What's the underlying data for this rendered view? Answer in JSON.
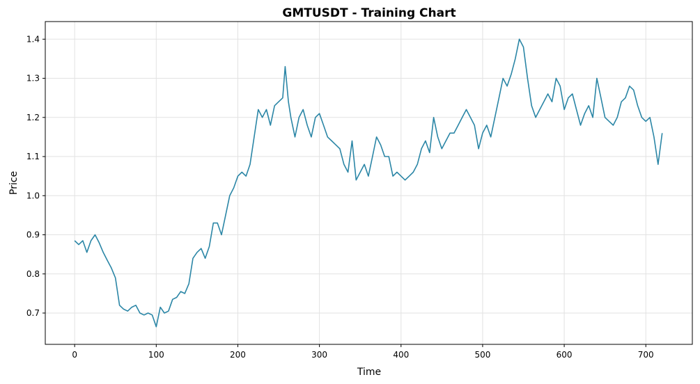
{
  "chart_data": {
    "type": "line",
    "title": "GMTUSDT - Training Chart",
    "xlabel": "Time",
    "ylabel": "Price",
    "xlim": [
      -36,
      757
    ],
    "ylim": [
      0.62,
      1.445
    ],
    "grid": true,
    "line_color": "#2b86a6",
    "x_ticks": [
      0,
      100,
      200,
      300,
      400,
      500,
      600,
      700
    ],
    "x_tick_labels": [
      "0",
      "100",
      "200",
      "300",
      "400",
      "500",
      "600",
      "700"
    ],
    "y_ticks": [
      0.7,
      0.8,
      0.9,
      1.0,
      1.1,
      1.2,
      1.3,
      1.4
    ],
    "y_tick_labels": [
      "0.7",
      "0.8",
      "0.9",
      "1.0",
      "1.1",
      "1.2",
      "1.3",
      "1.4"
    ],
    "series": [
      {
        "x": [
          0,
          5,
          10,
          15,
          20,
          25,
          30,
          35,
          40,
          45,
          50,
          55,
          60,
          65,
          70,
          75,
          80,
          85,
          90,
          95,
          100,
          105,
          110,
          115,
          120,
          125,
          130,
          135,
          140,
          145,
          150,
          155,
          160,
          165,
          170,
          175,
          180,
          185,
          190,
          195,
          200,
          205,
          210,
          215,
          220,
          225,
          230,
          235,
          240,
          245,
          250,
          255,
          258,
          262,
          265,
          270,
          275,
          280,
          285,
          290,
          295,
          300,
          305,
          310,
          315,
          320,
          325,
          330,
          335,
          340,
          345,
          350,
          355,
          360,
          365,
          370,
          375,
          380,
          385,
          390,
          395,
          400,
          405,
          410,
          415,
          420,
          425,
          430,
          435,
          440,
          445,
          450,
          455,
          460,
          465,
          470,
          475,
          480,
          485,
          490,
          495,
          500,
          505,
          510,
          515,
          520,
          525,
          530,
          535,
          540,
          545,
          550,
          555,
          560,
          565,
          570,
          575,
          580,
          585,
          590,
          595,
          600,
          605,
          610,
          615,
          620,
          625,
          630,
          635,
          640,
          645,
          650,
          655,
          660,
          665,
          670,
          675,
          680,
          685,
          690,
          695,
          700,
          705,
          710,
          715,
          720
        ],
        "values": [
          0.885,
          0.875,
          0.885,
          0.855,
          0.885,
          0.9,
          0.88,
          0.855,
          0.835,
          0.815,
          0.79,
          0.72,
          0.71,
          0.705,
          0.715,
          0.72,
          0.7,
          0.695,
          0.7,
          0.695,
          0.665,
          0.715,
          0.7,
          0.705,
          0.735,
          0.74,
          0.755,
          0.75,
          0.775,
          0.84,
          0.855,
          0.865,
          0.84,
          0.87,
          0.93,
          0.93,
          0.9,
          0.95,
          1.0,
          1.02,
          1.05,
          1.06,
          1.05,
          1.08,
          1.15,
          1.22,
          1.2,
          1.22,
          1.18,
          1.23,
          1.24,
          1.25,
          1.33,
          1.24,
          1.2,
          1.15,
          1.2,
          1.22,
          1.18,
          1.15,
          1.2,
          1.21,
          1.18,
          1.15,
          1.14,
          1.13,
          1.12,
          1.08,
          1.06,
          1.14,
          1.04,
          1.06,
          1.08,
          1.05,
          1.1,
          1.15,
          1.13,
          1.1,
          1.1,
          1.05,
          1.06,
          1.05,
          1.04,
          1.05,
          1.06,
          1.08,
          1.12,
          1.14,
          1.11,
          1.2,
          1.15,
          1.12,
          1.14,
          1.16,
          1.16,
          1.18,
          1.2,
          1.22,
          1.2,
          1.18,
          1.12,
          1.16,
          1.18,
          1.15,
          1.2,
          1.25,
          1.3,
          1.28,
          1.31,
          1.35,
          1.4,
          1.38,
          1.3,
          1.23,
          1.2,
          1.22,
          1.24,
          1.26,
          1.24,
          1.3,
          1.28,
          1.22,
          1.25,
          1.26,
          1.22,
          1.18,
          1.21,
          1.23,
          1.2,
          1.3,
          1.25,
          1.2,
          1.19,
          1.18,
          1.2,
          1.24,
          1.25,
          1.28,
          1.27,
          1.23,
          1.2,
          1.19,
          1.2,
          1.15,
          1.08,
          1.16
        ]
      }
    ]
  }
}
